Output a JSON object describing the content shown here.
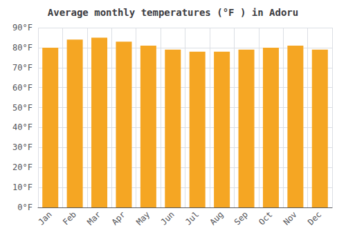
{
  "chart_data": {
    "type": "bar",
    "title": "Average monthly temperatures (°F ) in Adoru",
    "categories": [
      "Jan",
      "Feb",
      "Mar",
      "Apr",
      "May",
      "Jun",
      "Jul",
      "Aug",
      "Sep",
      "Oct",
      "Nov",
      "Dec"
    ],
    "values": [
      80,
      84,
      85,
      83,
      81,
      79,
      78,
      78,
      79,
      80,
      81,
      79
    ],
    "color": "#F5A623",
    "ylim": [
      0,
      90
    ],
    "yticks": [
      {
        "value": 0,
        "label": "0°F"
      },
      {
        "value": 10,
        "label": "10°F"
      },
      {
        "value": 20,
        "label": "20°F"
      },
      {
        "value": 30,
        "label": "30°F"
      },
      {
        "value": 40,
        "label": "40°F"
      },
      {
        "value": 50,
        "label": "50°F"
      },
      {
        "value": 60,
        "label": "60°F"
      },
      {
        "value": 70,
        "label": "70°F"
      },
      {
        "value": 80,
        "label": "80°F"
      },
      {
        "value": 90,
        "label": "90°F"
      }
    ],
    "grid": true
  }
}
